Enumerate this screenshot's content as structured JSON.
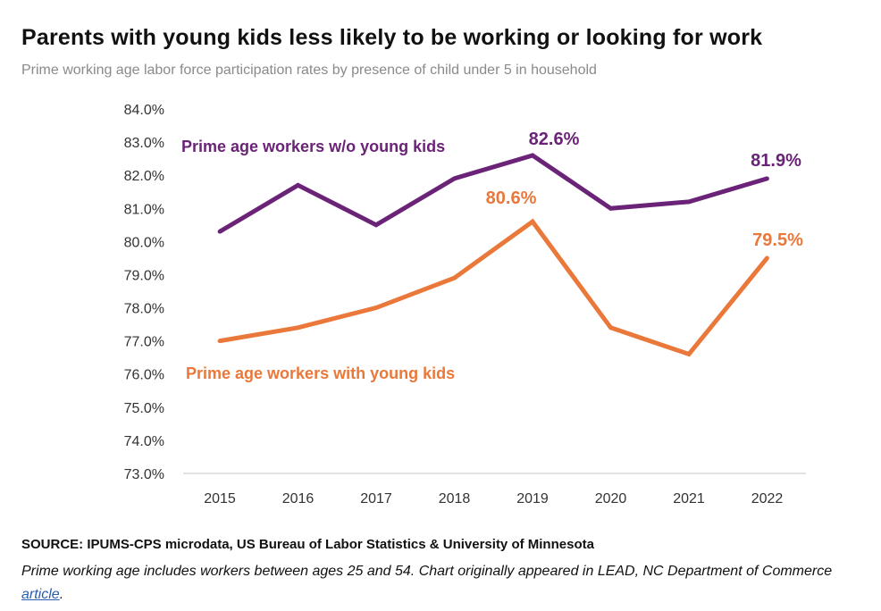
{
  "title": "Parents with young kids less likely to be working or looking for work",
  "subtitle": "Prime working age labor force participation rates by presence of child under 5 in household",
  "source": "SOURCE: IPUMS-CPS microdata, US Bureau of Labor Statistics & University of Minnesota",
  "note": {
    "text": "Prime working age includes workers between ages 25 and 54. Chart originally appeared in LEAD, NC Department of Commerce ",
    "link_text": "article",
    "end": "."
  },
  "chart_data": {
    "type": "line",
    "categories": [
      "2015",
      "2016",
      "2017",
      "2018",
      "2019",
      "2020",
      "2021",
      "2022"
    ],
    "ylim": [
      73.0,
      84.0
    ],
    "yticks": [
      "73.0%",
      "74.0%",
      "75.0%",
      "76.0%",
      "77.0%",
      "78.0%",
      "79.0%",
      "80.0%",
      "81.0%",
      "82.0%",
      "83.0%",
      "84.0%"
    ],
    "grid": false,
    "series": [
      {
        "name": "Prime age workers w/o young kids",
        "color": "#6b2378",
        "values": [
          80.3,
          81.7,
          80.5,
          81.9,
          82.6,
          81.0,
          81.2,
          81.9
        ],
        "labels": [
          {
            "index": 4,
            "text": "82.6%"
          },
          {
            "index": 7,
            "text": "81.9%"
          }
        ]
      },
      {
        "name": "Prime age workers with young kids",
        "color": "#e9783a",
        "values": [
          77.0,
          77.4,
          78.0,
          78.9,
          80.6,
          77.4,
          76.6,
          79.5
        ],
        "labels": [
          {
            "index": 4,
            "text": "80.6%"
          },
          {
            "index": 7,
            "text": "79.5%"
          }
        ]
      }
    ]
  }
}
